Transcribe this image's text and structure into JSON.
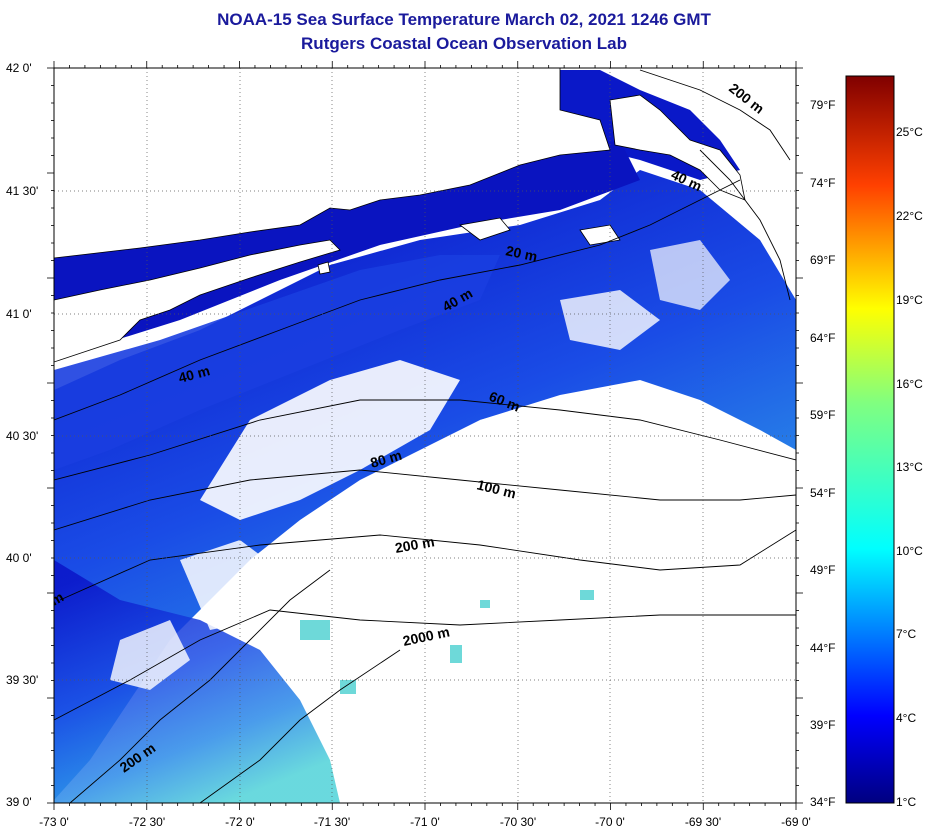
{
  "title": "NOAA-15 Sea Surface Temperature March 02, 2021 1246 GMT",
  "subtitle": "Rutgers Coastal Ocean Observation Lab",
  "lon_ticks": [
    "-73 0'",
    "-72 30'",
    "-72 0'",
    "-71 30'",
    "-71 0'",
    "-70 30'",
    "-70 0'",
    "-69 30'",
    "-69 0'"
  ],
  "lat_ticks": [
    "42 0'",
    "41 30'",
    "41 0'",
    "40 30'",
    "40 0'",
    "39 30'",
    "39 0'"
  ],
  "fahrenheit_ticks": [
    "79°F",
    "74°F",
    "69°F",
    "64°F",
    "59°F",
    "54°F",
    "49°F",
    "44°F",
    "39°F",
    "34°F"
  ],
  "celsius_ticks": [
    "25°C",
    "22°C",
    "19°C",
    "16°C",
    "13°C",
    "10°C",
    "7°C",
    "4°C",
    "1°C"
  ],
  "contour_labels": [
    "200 m",
    "40 m",
    "20 m",
    "40 m",
    "40 m",
    "60 m",
    "80 m",
    "100 m",
    "200 m",
    "2000 m",
    "200 m",
    "m"
  ],
  "colors": {
    "title": "#1a1a9c",
    "land": "#ffffff",
    "cloud": "#ffffff",
    "sst_cold": "#0a1fd0",
    "sst_warm": "#5ad7e0"
  }
}
